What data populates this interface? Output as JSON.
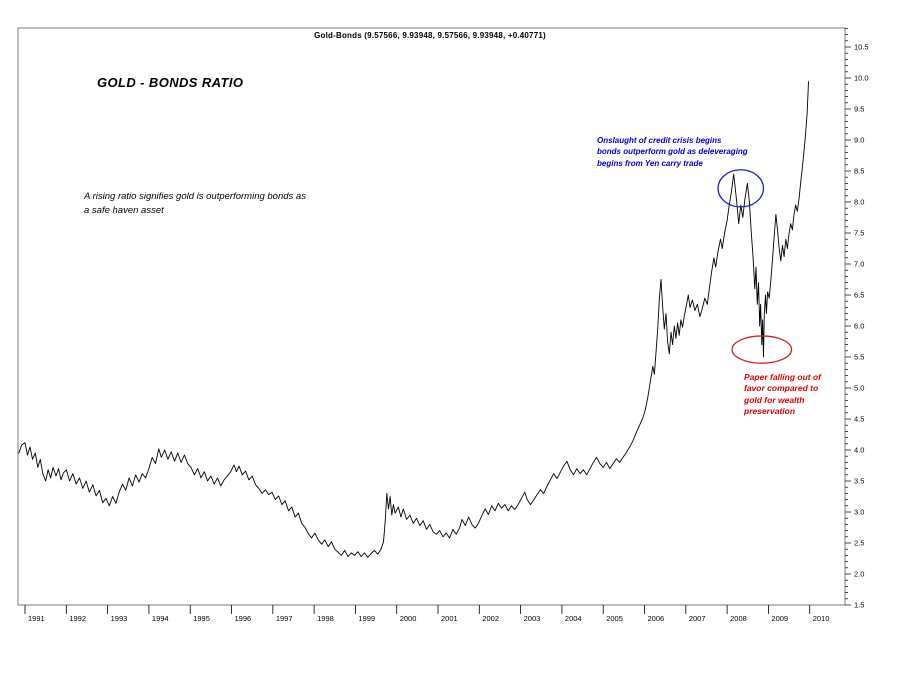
{
  "window": {
    "title": "Gold-Bonds (9.57566, 9.93948, 9.57566, 9.93948, +0.40771)"
  },
  "chart_data": {
    "type": "line",
    "title": "GOLD - BONDS RATIO",
    "line_color": "#000000",
    "ylim": [
      1.5,
      10.5
    ],
    "y_tick_step": 0.5,
    "y_minor_step": 0.1,
    "y_ticks": [
      1.5,
      2.0,
      2.5,
      3.0,
      3.5,
      4.0,
      4.5,
      5.0,
      5.5,
      6.0,
      6.5,
      7.0,
      7.5,
      8.0,
      8.5,
      9.0,
      9.5,
      10.0,
      10.5
    ],
    "x_years": [
      1991,
      1992,
      1993,
      1994,
      1995,
      1996,
      1997,
      1998,
      1999,
      2000,
      2001,
      2002,
      2003,
      2004,
      2005,
      2006,
      2007,
      2008,
      2009,
      2010
    ],
    "grid": false,
    "legend": "none",
    "series": [
      {
        "name": "Gold-Bonds ratio",
        "points": [
          [
            1990.85,
            3.95
          ],
          [
            1990.92,
            4.08
          ],
          [
            1991.0,
            4.12
          ],
          [
            1991.06,
            3.92
          ],
          [
            1991.12,
            4.05
          ],
          [
            1991.18,
            3.85
          ],
          [
            1991.25,
            3.95
          ],
          [
            1991.31,
            3.72
          ],
          [
            1991.37,
            3.85
          ],
          [
            1991.43,
            3.62
          ],
          [
            1991.5,
            3.5
          ],
          [
            1991.56,
            3.68
          ],
          [
            1991.62,
            3.55
          ],
          [
            1991.68,
            3.72
          ],
          [
            1991.75,
            3.58
          ],
          [
            1991.81,
            3.7
          ],
          [
            1991.87,
            3.52
          ],
          [
            1991.93,
            3.63
          ],
          [
            1992.0,
            3.68
          ],
          [
            1992.08,
            3.5
          ],
          [
            1992.16,
            3.62
          ],
          [
            1992.24,
            3.45
          ],
          [
            1992.32,
            3.55
          ],
          [
            1992.4,
            3.38
          ],
          [
            1992.48,
            3.5
          ],
          [
            1992.56,
            3.32
          ],
          [
            1992.64,
            3.44
          ],
          [
            1992.72,
            3.26
          ],
          [
            1992.8,
            3.35
          ],
          [
            1992.88,
            3.15
          ],
          [
            1992.96,
            3.22
          ],
          [
            1993.04,
            3.1
          ],
          [
            1993.12,
            3.25
          ],
          [
            1993.2,
            3.14
          ],
          [
            1993.28,
            3.32
          ],
          [
            1993.36,
            3.45
          ],
          [
            1993.44,
            3.35
          ],
          [
            1993.52,
            3.55
          ],
          [
            1993.6,
            3.42
          ],
          [
            1993.68,
            3.6
          ],
          [
            1993.76,
            3.48
          ],
          [
            1993.84,
            3.62
          ],
          [
            1993.92,
            3.55
          ],
          [
            1994.0,
            3.7
          ],
          [
            1994.08,
            3.88
          ],
          [
            1994.16,
            3.78
          ],
          [
            1994.24,
            4.02
          ],
          [
            1994.3,
            3.88
          ],
          [
            1994.38,
            4.0
          ],
          [
            1994.46,
            3.85
          ],
          [
            1994.54,
            3.97
          ],
          [
            1994.62,
            3.82
          ],
          [
            1994.7,
            3.95
          ],
          [
            1994.78,
            3.8
          ],
          [
            1994.86,
            3.92
          ],
          [
            1994.94,
            3.78
          ],
          [
            1995.02,
            3.72
          ],
          [
            1995.1,
            3.6
          ],
          [
            1995.18,
            3.7
          ],
          [
            1995.26,
            3.55
          ],
          [
            1995.34,
            3.65
          ],
          [
            1995.42,
            3.5
          ],
          [
            1995.5,
            3.58
          ],
          [
            1995.58,
            3.45
          ],
          [
            1995.66,
            3.55
          ],
          [
            1995.74,
            3.42
          ],
          [
            1995.82,
            3.52
          ],
          [
            1995.9,
            3.58
          ],
          [
            1995.98,
            3.65
          ],
          [
            1996.06,
            3.76
          ],
          [
            1996.12,
            3.65
          ],
          [
            1996.18,
            3.74
          ],
          [
            1996.26,
            3.6
          ],
          [
            1996.34,
            3.66
          ],
          [
            1996.42,
            3.52
          ],
          [
            1996.5,
            3.58
          ],
          [
            1996.58,
            3.44
          ],
          [
            1996.66,
            3.38
          ],
          [
            1996.74,
            3.3
          ],
          [
            1996.82,
            3.36
          ],
          [
            1996.9,
            3.28
          ],
          [
            1996.98,
            3.32
          ],
          [
            1997.06,
            3.2
          ],
          [
            1997.14,
            3.26
          ],
          [
            1997.22,
            3.12
          ],
          [
            1997.3,
            3.18
          ],
          [
            1997.38,
            3.02
          ],
          [
            1997.46,
            3.08
          ],
          [
            1997.54,
            2.92
          ],
          [
            1997.62,
            2.98
          ],
          [
            1997.7,
            2.82
          ],
          [
            1997.78,
            2.75
          ],
          [
            1997.86,
            2.65
          ],
          [
            1997.94,
            2.58
          ],
          [
            1998.02,
            2.66
          ],
          [
            1998.1,
            2.55
          ],
          [
            1998.18,
            2.48
          ],
          [
            1998.26,
            2.55
          ],
          [
            1998.34,
            2.44
          ],
          [
            1998.42,
            2.52
          ],
          [
            1998.5,
            2.4
          ],
          [
            1998.58,
            2.35
          ],
          [
            1998.66,
            2.3
          ],
          [
            1998.74,
            2.38
          ],
          [
            1998.82,
            2.28
          ],
          [
            1998.9,
            2.34
          ],
          [
            1998.98,
            2.3
          ],
          [
            1999.06,
            2.36
          ],
          [
            1999.14,
            2.28
          ],
          [
            1999.22,
            2.34
          ],
          [
            1999.3,
            2.27
          ],
          [
            1999.38,
            2.33
          ],
          [
            1999.46,
            2.38
          ],
          [
            1999.54,
            2.32
          ],
          [
            1999.62,
            2.4
          ],
          [
            1999.68,
            2.52
          ],
          [
            1999.72,
            2.85
          ],
          [
            1999.76,
            3.3
          ],
          [
            1999.8,
            3.05
          ],
          [
            1999.84,
            3.25
          ],
          [
            1999.88,
            2.95
          ],
          [
            1999.92,
            3.12
          ],
          [
            1999.96,
            2.98
          ],
          [
            2000.04,
            3.08
          ],
          [
            2000.1,
            2.92
          ],
          [
            2000.16,
            3.05
          ],
          [
            2000.24,
            2.88
          ],
          [
            2000.32,
            2.95
          ],
          [
            2000.4,
            2.82
          ],
          [
            2000.48,
            2.9
          ],
          [
            2000.56,
            2.78
          ],
          [
            2000.64,
            2.86
          ],
          [
            2000.72,
            2.72
          ],
          [
            2000.8,
            2.8
          ],
          [
            2000.88,
            2.68
          ],
          [
            2000.96,
            2.64
          ],
          [
            2001.04,
            2.7
          ],
          [
            2001.12,
            2.6
          ],
          [
            2001.2,
            2.66
          ],
          [
            2001.28,
            2.58
          ],
          [
            2001.36,
            2.72
          ],
          [
            2001.44,
            2.64
          ],
          [
            2001.52,
            2.74
          ],
          [
            2001.58,
            2.88
          ],
          [
            2001.66,
            2.78
          ],
          [
            2001.74,
            2.92
          ],
          [
            2001.82,
            2.8
          ],
          [
            2001.9,
            2.74
          ],
          [
            2001.98,
            2.82
          ],
          [
            2002.06,
            2.94
          ],
          [
            2002.14,
            3.05
          ],
          [
            2002.22,
            2.96
          ],
          [
            2002.3,
            3.1
          ],
          [
            2002.38,
            3.02
          ],
          [
            2002.46,
            3.14
          ],
          [
            2002.54,
            3.06
          ],
          [
            2002.62,
            3.12
          ],
          [
            2002.7,
            3.02
          ],
          [
            2002.78,
            3.1
          ],
          [
            2002.86,
            3.04
          ],
          [
            2002.94,
            3.12
          ],
          [
            2003.02,
            3.22
          ],
          [
            2003.1,
            3.32
          ],
          [
            2003.16,
            3.2
          ],
          [
            2003.24,
            3.12
          ],
          [
            2003.32,
            3.2
          ],
          [
            2003.4,
            3.28
          ],
          [
            2003.48,
            3.36
          ],
          [
            2003.56,
            3.3
          ],
          [
            2003.64,
            3.42
          ],
          [
            2003.72,
            3.52
          ],
          [
            2003.8,
            3.62
          ],
          [
            2003.88,
            3.54
          ],
          [
            2003.96,
            3.64
          ],
          [
            2004.04,
            3.74
          ],
          [
            2004.12,
            3.82
          ],
          [
            2004.2,
            3.68
          ],
          [
            2004.28,
            3.6
          ],
          [
            2004.36,
            3.7
          ],
          [
            2004.44,
            3.62
          ],
          [
            2004.52,
            3.68
          ],
          [
            2004.6,
            3.6
          ],
          [
            2004.68,
            3.7
          ],
          [
            2004.76,
            3.8
          ],
          [
            2004.84,
            3.88
          ],
          [
            2004.92,
            3.78
          ],
          [
            2005.0,
            3.72
          ],
          [
            2005.08,
            3.8
          ],
          [
            2005.16,
            3.7
          ],
          [
            2005.24,
            3.78
          ],
          [
            2005.32,
            3.86
          ],
          [
            2005.4,
            3.8
          ],
          [
            2005.48,
            3.88
          ],
          [
            2005.56,
            3.96
          ],
          [
            2005.64,
            4.05
          ],
          [
            2005.72,
            4.15
          ],
          [
            2005.8,
            4.28
          ],
          [
            2005.88,
            4.4
          ],
          [
            2005.96,
            4.52
          ],
          [
            2006.02,
            4.65
          ],
          [
            2006.08,
            4.85
          ],
          [
            2006.14,
            5.1
          ],
          [
            2006.2,
            5.35
          ],
          [
            2006.24,
            5.22
          ],
          [
            2006.28,
            5.6
          ],
          [
            2006.32,
            5.95
          ],
          [
            2006.36,
            6.45
          ],
          [
            2006.4,
            6.75
          ],
          [
            2006.44,
            6.3
          ],
          [
            2006.48,
            5.95
          ],
          [
            2006.52,
            6.2
          ],
          [
            2006.56,
            5.75
          ],
          [
            2006.6,
            5.55
          ],
          [
            2006.64,
            5.9
          ],
          [
            2006.68,
            5.7
          ],
          [
            2006.72,
            6.0
          ],
          [
            2006.76,
            5.8
          ],
          [
            2006.8,
            6.05
          ],
          [
            2006.84,
            5.85
          ],
          [
            2006.88,
            6.1
          ],
          [
            2006.92,
            5.98
          ],
          [
            2006.96,
            6.15
          ],
          [
            2007.02,
            6.35
          ],
          [
            2007.06,
            6.5
          ],
          [
            2007.1,
            6.3
          ],
          [
            2007.16,
            6.42
          ],
          [
            2007.22,
            6.25
          ],
          [
            2007.28,
            6.35
          ],
          [
            2007.34,
            6.15
          ],
          [
            2007.4,
            6.28
          ],
          [
            2007.46,
            6.45
          ],
          [
            2007.52,
            6.35
          ],
          [
            2007.56,
            6.55
          ],
          [
            2007.62,
            6.85
          ],
          [
            2007.68,
            7.1
          ],
          [
            2007.72,
            6.95
          ],
          [
            2007.78,
            7.2
          ],
          [
            2007.84,
            7.4
          ],
          [
            2007.88,
            7.25
          ],
          [
            2007.94,
            7.5
          ],
          [
            2008.0,
            7.7
          ],
          [
            2008.05,
            7.95
          ],
          [
            2008.1,
            8.15
          ],
          [
            2008.16,
            8.45
          ],
          [
            2008.2,
            8.2
          ],
          [
            2008.24,
            7.95
          ],
          [
            2008.28,
            7.65
          ],
          [
            2008.33,
            7.95
          ],
          [
            2008.38,
            7.75
          ],
          [
            2008.43,
            8.05
          ],
          [
            2008.49,
            8.3
          ],
          [
            2008.54,
            8.0
          ],
          [
            2008.58,
            7.55
          ],
          [
            2008.63,
            7.1
          ],
          [
            2008.67,
            6.6
          ],
          [
            2008.7,
            6.95
          ],
          [
            2008.73,
            6.35
          ],
          [
            2008.76,
            6.7
          ],
          [
            2008.79,
            6.0
          ],
          [
            2008.81,
            6.35
          ],
          [
            2008.84,
            5.7
          ],
          [
            2008.86,
            6.1
          ],
          [
            2008.88,
            5.5
          ],
          [
            2008.9,
            6.2
          ],
          [
            2008.93,
            6.5
          ],
          [
            2008.95,
            6.2
          ],
          [
            2008.98,
            6.55
          ],
          [
            2009.02,
            6.45
          ],
          [
            2009.06,
            6.75
          ],
          [
            2009.1,
            7.1
          ],
          [
            2009.14,
            7.45
          ],
          [
            2009.18,
            7.8
          ],
          [
            2009.22,
            7.55
          ],
          [
            2009.26,
            7.25
          ],
          [
            2009.3,
            7.05
          ],
          [
            2009.34,
            7.3
          ],
          [
            2009.38,
            7.12
          ],
          [
            2009.42,
            7.4
          ],
          [
            2009.46,
            7.25
          ],
          [
            2009.5,
            7.5
          ],
          [
            2009.54,
            7.65
          ],
          [
            2009.58,
            7.55
          ],
          [
            2009.62,
            7.8
          ],
          [
            2009.66,
            7.95
          ],
          [
            2009.7,
            7.85
          ],
          [
            2009.74,
            8.05
          ],
          [
            2009.78,
            8.3
          ],
          [
            2009.82,
            8.55
          ],
          [
            2009.86,
            8.8
          ],
          [
            2009.9,
            9.1
          ],
          [
            2009.94,
            9.45
          ],
          [
            2009.97,
            9.94
          ]
        ]
      }
    ],
    "annotations": {
      "note": "A rising ratio signifies gold is outperforming bonds as\na safe haven asset",
      "credit_crisis": "Onslaught of credit crisis begins\nbonds outperform gold as deleveraging\nbegins from Yen carry trade",
      "credit_crisis_color": "#0000cc",
      "paper_note": "Paper falling out of\nfavor compared to\ngold for wealth\npreservation",
      "paper_note_color": "#dd0000"
    },
    "ellipses": [
      {
        "name": "credit-crisis-ellipse",
        "color": "#2222bb",
        "cx": 2008.33,
        "cy": 8.22,
        "rx": 0.55,
        "ry": 0.3
      },
      {
        "name": "paper-falling-ellipse",
        "color": "#cc2222",
        "cx": 2008.84,
        "cy": 5.62,
        "rx": 0.72,
        "ry": 0.22
      }
    ]
  }
}
